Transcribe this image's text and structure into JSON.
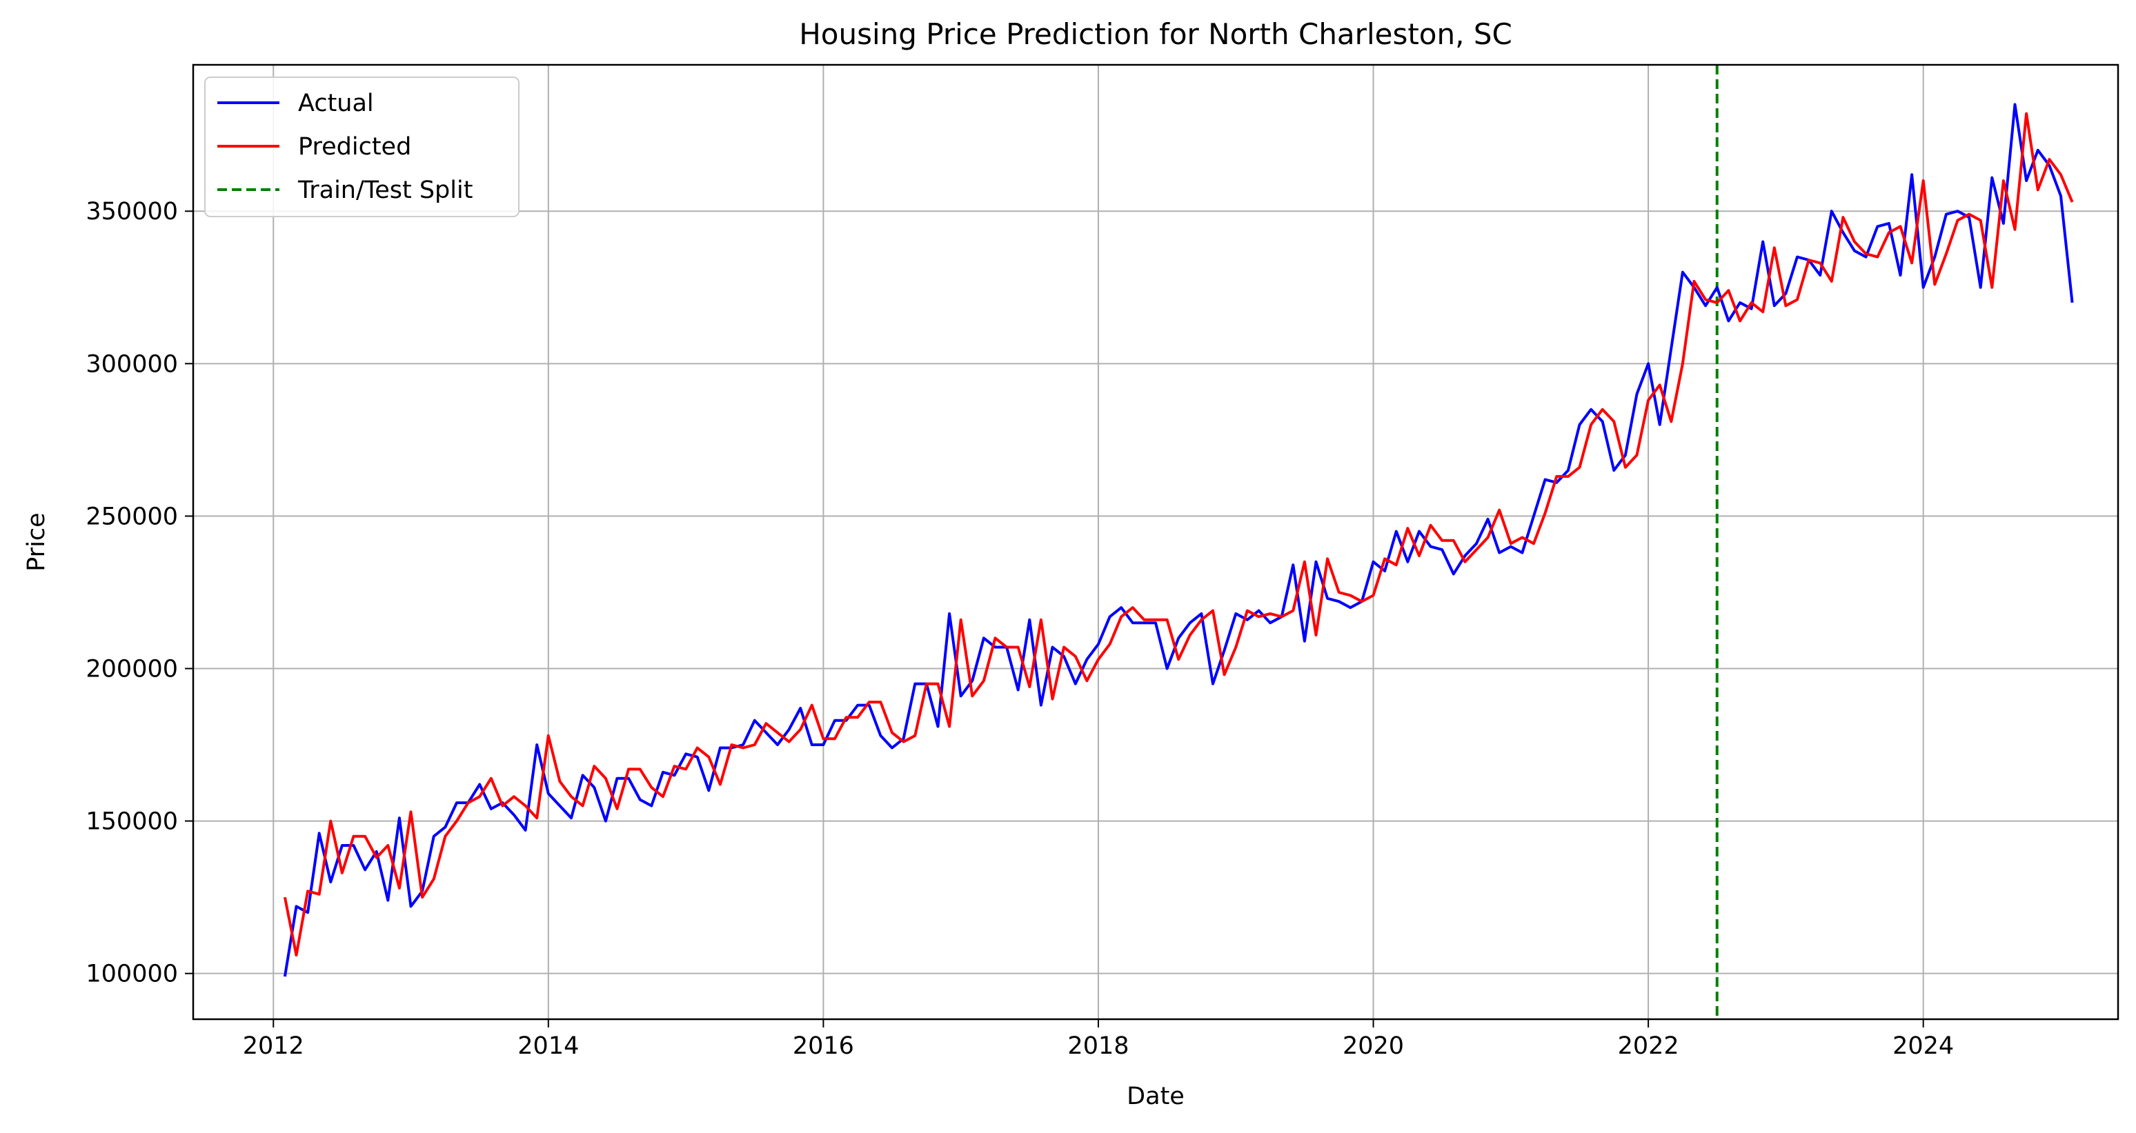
{
  "chart_data": {
    "type": "line",
    "title": "Housing Price Prediction for North Charleston, SC",
    "xlabel": "Date",
    "ylabel": "Price",
    "x_range": [
      "2011-06-01",
      "2025-06-01"
    ],
    "ylim": [
      85000,
      398000
    ],
    "x_ticks": [
      "2012",
      "2014",
      "2016",
      "2018",
      "2020",
      "2022",
      "2024"
    ],
    "y_ticks": [
      100000,
      150000,
      200000,
      250000,
      300000,
      350000
    ],
    "grid": true,
    "legend_position": "top-left",
    "split": {
      "name": "Train/Test Split",
      "date": "2022-07-01",
      "color": "#008000",
      "style": "dashed"
    },
    "dates": [
      "2012-02",
      "2012-03",
      "2012-04",
      "2012-05",
      "2012-06",
      "2012-07",
      "2012-08",
      "2012-09",
      "2012-10",
      "2012-11",
      "2012-12",
      "2013-01",
      "2013-02",
      "2013-03",
      "2013-04",
      "2013-05",
      "2013-06",
      "2013-07",
      "2013-08",
      "2013-09",
      "2013-10",
      "2013-11",
      "2013-12",
      "2014-01",
      "2014-02",
      "2014-03",
      "2014-04",
      "2014-05",
      "2014-06",
      "2014-07",
      "2014-08",
      "2014-09",
      "2014-10",
      "2014-11",
      "2014-12",
      "2015-01",
      "2015-02",
      "2015-03",
      "2015-04",
      "2015-05",
      "2015-06",
      "2015-07",
      "2015-08",
      "2015-09",
      "2015-10",
      "2015-11",
      "2015-12",
      "2016-01",
      "2016-02",
      "2016-03",
      "2016-04",
      "2016-05",
      "2016-06",
      "2016-07",
      "2016-08",
      "2016-09",
      "2016-10",
      "2016-11",
      "2016-12",
      "2017-01",
      "2017-02",
      "2017-03",
      "2017-04",
      "2017-05",
      "2017-06",
      "2017-07",
      "2017-08",
      "2017-09",
      "2017-10",
      "2017-11",
      "2017-12",
      "2018-01",
      "2018-02",
      "2018-03",
      "2018-04",
      "2018-05",
      "2018-06",
      "2018-07",
      "2018-08",
      "2018-09",
      "2018-10",
      "2018-11",
      "2018-12",
      "2019-01",
      "2019-02",
      "2019-03",
      "2019-04",
      "2019-05",
      "2019-06",
      "2019-07",
      "2019-08",
      "2019-09",
      "2019-10",
      "2019-11",
      "2019-12",
      "2020-01",
      "2020-02",
      "2020-03",
      "2020-04",
      "2020-05",
      "2020-06",
      "2020-07",
      "2020-08",
      "2020-09",
      "2020-10",
      "2020-11",
      "2020-12",
      "2021-01",
      "2021-02",
      "2021-03",
      "2021-04",
      "2021-05",
      "2021-06",
      "2021-07",
      "2021-08",
      "2021-09",
      "2021-10",
      "2021-11",
      "2021-12",
      "2022-01",
      "2022-02",
      "2022-03",
      "2022-04",
      "2022-05",
      "2022-06",
      "2022-07",
      "2022-08",
      "2022-09",
      "2022-10",
      "2022-11",
      "2022-12",
      "2023-01",
      "2023-02",
      "2023-03",
      "2023-04",
      "2023-05",
      "2023-06",
      "2023-07",
      "2023-08",
      "2023-09",
      "2023-10",
      "2023-11",
      "2023-12",
      "2024-01",
      "2024-02",
      "2024-03",
      "2024-04",
      "2024-05",
      "2024-06",
      "2024-07",
      "2024-08",
      "2024-09",
      "2024-10",
      "2024-11",
      "2024-12",
      "2025-01",
      "2025-02"
    ],
    "series": [
      {
        "name": "Actual",
        "color": "#0000ff",
        "values": [
          99000,
          122000,
          120000,
          146000,
          130000,
          142000,
          142000,
          134000,
          140000,
          124000,
          151000,
          122000,
          127000,
          145000,
          148000,
          156000,
          156000,
          162000,
          154000,
          156000,
          152000,
          147000,
          175000,
          159000,
          155000,
          151000,
          165000,
          161000,
          150000,
          164000,
          164000,
          157000,
          155000,
          166000,
          165000,
          172000,
          171000,
          160000,
          174000,
          174000,
          175000,
          183000,
          179000,
          175000,
          180000,
          187000,
          175000,
          175000,
          183000,
          183000,
          188000,
          188000,
          178000,
          174000,
          177000,
          195000,
          195000,
          181000,
          218000,
          191000,
          196000,
          210000,
          207000,
          207000,
          193000,
          216000,
          188000,
          207000,
          204000,
          195000,
          203000,
          208000,
          217000,
          220000,
          215000,
          215000,
          215000,
          200000,
          210000,
          215000,
          218000,
          195000,
          206000,
          218000,
          216000,
          219000,
          215000,
          217000,
          234000,
          209000,
          235000,
          223000,
          222000,
          220000,
          222000,
          235000,
          232000,
          245000,
          235000,
          245000,
          240000,
          239000,
          231000,
          237000,
          241000,
          249000,
          238000,
          240000,
          238000,
          250000,
          262000,
          261000,
          265000,
          280000,
          285000,
          281000,
          265000,
          270000,
          290000,
          300000,
          280000,
          305000,
          330000,
          325000,
          319000,
          325000,
          314000,
          320000,
          318000,
          340000,
          319000,
          323000,
          335000,
          334000,
          329000,
          350000,
          343000,
          337000,
          335000,
          345000,
          346000,
          329000,
          362000,
          325000,
          335000,
          349000,
          350000,
          348000,
          325000,
          361000,
          346000,
          385000,
          360000,
          370000,
          365000,
          355000,
          320000
        ]
      },
      {
        "name": "Predicted",
        "color": "#ff0000",
        "values": [
          125000,
          106000,
          127000,
          126000,
          150000,
          133000,
          145000,
          145000,
          138000,
          142000,
          128000,
          153000,
          125000,
          131000,
          145000,
          150000,
          156000,
          158000,
          164000,
          155000,
          158000,
          155000,
          151000,
          178000,
          163000,
          158000,
          155000,
          168000,
          164000,
          154000,
          167000,
          167000,
          161000,
          158000,
          168000,
          167000,
          174000,
          171000,
          162000,
          175000,
          174000,
          175000,
          182000,
          179000,
          176000,
          180000,
          188000,
          177000,
          177000,
          184000,
          184000,
          189000,
          189000,
          179000,
          176000,
          178000,
          195000,
          195000,
          181000,
          216000,
          191000,
          196000,
          210000,
          207000,
          207000,
          194000,
          216000,
          190000,
          207000,
          204000,
          196000,
          203000,
          208000,
          217000,
          220000,
          216000,
          216000,
          216000,
          203000,
          211000,
          216000,
          219000,
          198000,
          207000,
          219000,
          217000,
          218000,
          217000,
          219000,
          235000,
          211000,
          236000,
          225000,
          224000,
          222000,
          224000,
          236000,
          234000,
          246000,
          237000,
          247000,
          242000,
          242000,
          235000,
          239000,
          243000,
          252000,
          241000,
          243000,
          241000,
          251000,
          263000,
          263000,
          266000,
          280000,
          285000,
          281000,
          266000,
          270000,
          288000,
          293000,
          281000,
          300000,
          327000,
          321000,
          320000,
          324000,
          314000,
          320000,
          317000,
          338000,
          319000,
          321000,
          334000,
          333000,
          327000,
          348000,
          340000,
          336000,
          335000,
          343000,
          345000,
          333000,
          360000,
          326000,
          336000,
          347000,
          349000,
          347000,
          325000,
          360000,
          344000,
          382000,
          357000,
          367000,
          362000,
          353000
        ]
      }
    ]
  }
}
